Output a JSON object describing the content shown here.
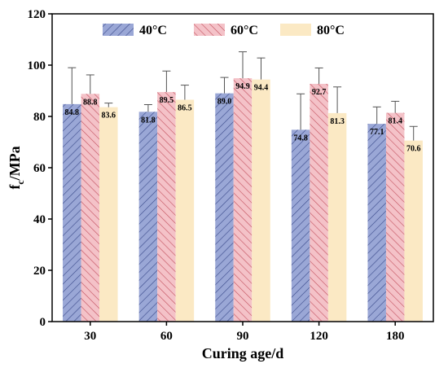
{
  "chart_data": {
    "type": "bar",
    "categories": [
      "30",
      "60",
      "90",
      "120",
      "180"
    ],
    "series": [
      {
        "name": "40°C",
        "values": [
          84.8,
          81.8,
          89.0,
          74.8,
          77.1
        ],
        "errors": [
          14.2,
          2.8,
          6.2,
          14.0,
          6.6
        ],
        "labels": [
          "84.8",
          "81.8",
          "89.0",
          "74.8",
          "77.1"
        ],
        "color": "#9aa7d6",
        "hatch": "///",
        "hatch_color": "#3a4a8a"
      },
      {
        "name": "60°C",
        "values": [
          88.8,
          89.5,
          94.9,
          92.7,
          81.4
        ],
        "errors": [
          7.4,
          8.2,
          10.3,
          6.2,
          4.5
        ],
        "labels": [
          "88.8",
          "89.5",
          "94.9",
          "92.7",
          "81.4"
        ],
        "color": "#f4c2c8",
        "hatch": "\\\\\\",
        "hatch_color": "#c2505e"
      },
      {
        "name": "80°C",
        "values": [
          83.6,
          86.5,
          94.4,
          81.3,
          70.6
        ],
        "errors": [
          1.6,
          5.7,
          8.4,
          10.2,
          5.5
        ],
        "labels": [
          "83.6",
          "86.5",
          "94.4",
          "81.3",
          "70.6"
        ],
        "color": "#fbe9c4",
        "hatch": "",
        "hatch_color": ""
      }
    ],
    "xlabel": "Curing age/d",
    "ylabel_main": "f",
    "ylabel_sub": "c",
    "ylabel_tail": "/MPa",
    "ylim": [
      0,
      120
    ],
    "yticks": [
      0,
      20,
      40,
      60,
      80,
      100,
      120
    ],
    "grid": false,
    "legend_position": "top"
  }
}
